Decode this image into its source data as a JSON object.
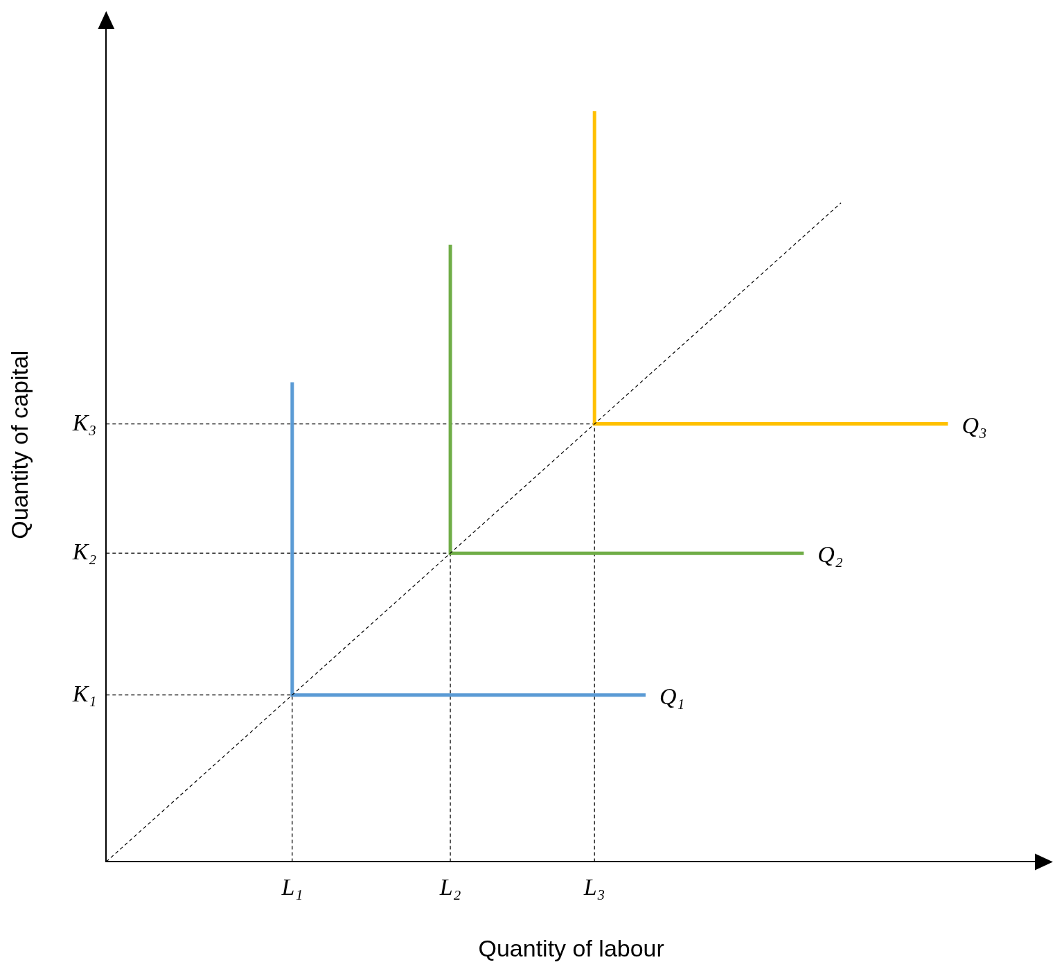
{
  "chart_data": {
    "type": "line",
    "x_label": "Quantity of labour",
    "y_label": "Quantity of capital",
    "xlim": [
      0,
      10
    ],
    "ylim": [
      0,
      10
    ],
    "xticks": [
      {
        "value": 2,
        "label": "L₁"
      },
      {
        "value": 3.7,
        "label": "L₂"
      },
      {
        "value": 5.25,
        "label": "L₃"
      }
    ],
    "yticks": [
      {
        "value": 2,
        "label": "K₁"
      },
      {
        "value": 3.7,
        "label": "K₂"
      },
      {
        "value": 5.25,
        "label": "K₃"
      }
    ],
    "grid": false,
    "series": [
      {
        "color": "#000000",
        "line_style": "dashed",
        "x": [
          0,
          7.9
        ],
        "y": [
          0,
          7.9
        ]
      },
      {
        "name": "Q₁",
        "color": "#5b9bd5",
        "line_style": "solid",
        "x": [
          2,
          2,
          5.8
        ],
        "y": [
          5.75,
          2,
          2
        ]
      },
      {
        "name": "Q₂",
        "color": "#70ad47",
        "line_style": "solid",
        "x": [
          3.7,
          3.7,
          7.5
        ],
        "y": [
          7.4,
          3.7,
          3.7
        ]
      },
      {
        "name": "Q₃",
        "color": "#ffc000",
        "line_style": "solid",
        "x": [
          5.25,
          5.25,
          9.05
        ],
        "y": [
          9.0,
          5.25,
          5.25
        ]
      }
    ]
  }
}
